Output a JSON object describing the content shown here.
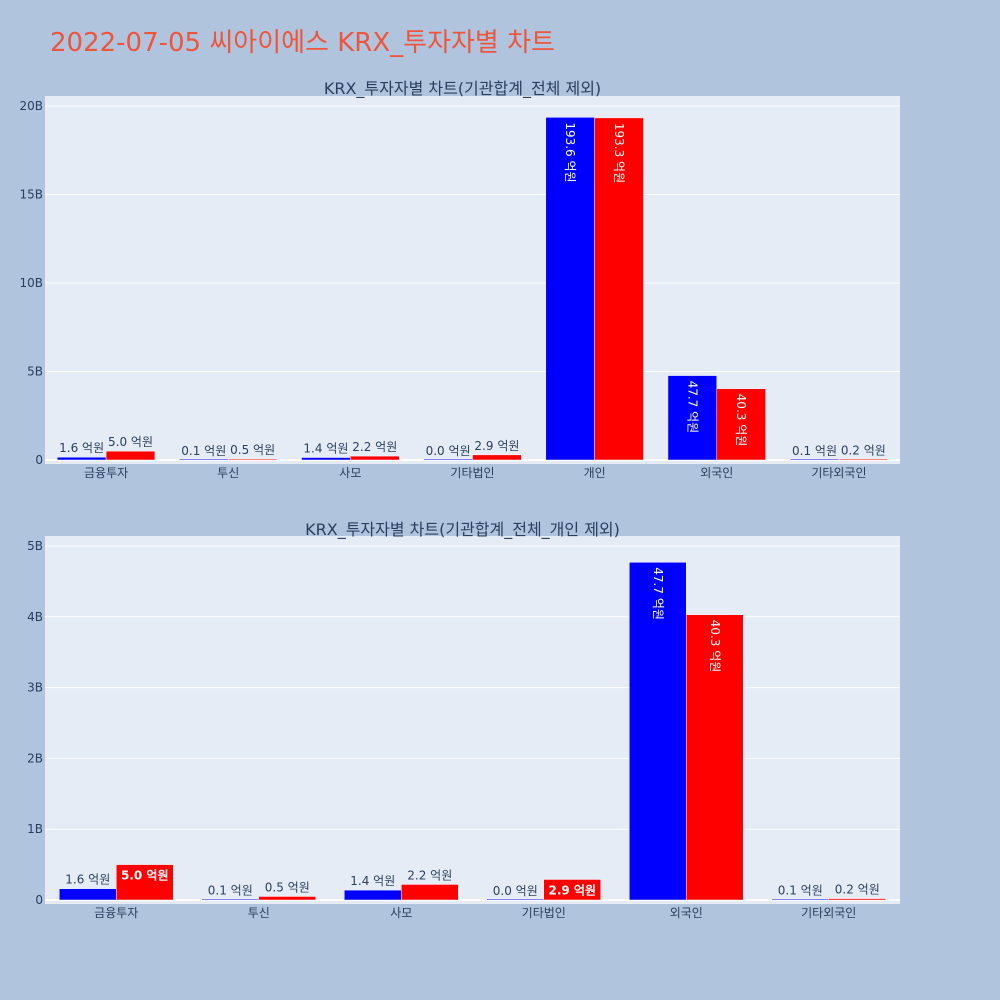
{
  "page_title": "2022-07-05 씨아이에스 KRX_투자자별 차트",
  "colors": {
    "page_bg": "#b0c4de",
    "plot_bg": "#e5ecf6",
    "buy": "#0000ff",
    "sell": "#ff0000",
    "title": "#ef553b",
    "text": "#2a3f5f"
  },
  "chart_data": [
    {
      "type": "bar",
      "title": "KRX_투자자별 차트(기관합계_전체 제외)",
      "categories": [
        "금융투자",
        "투신",
        "사모",
        "기타법인",
        "개인",
        "외국인",
        "기타외국인"
      ],
      "series": [
        {
          "values": [
            160000000,
            10000000,
            140000000,
            0,
            19360000000,
            4770000000,
            10000000
          ],
          "labels": [
            "1.6 억원",
            "0.1 억원",
            "1.4 억원",
            "0.0 억원",
            "193.6 억원",
            "47.7 억원",
            "0.1 억원"
          ]
        },
        {
          "values": [
            500000000,
            50000000,
            220000000,
            290000000,
            19330000000,
            4030000000,
            20000000
          ],
          "labels": [
            "5.0 억원",
            "0.5 억원",
            "2.2 억원",
            "2.9 억원",
            "193.3 억원",
            "40.3 억원",
            "0.2 억원"
          ]
        }
      ],
      "ylim": [
        0,
        20000000000
      ],
      "yticks": [
        0,
        5000000000,
        10000000000,
        15000000000,
        20000000000
      ],
      "ytick_labels": [
        "0",
        "5B",
        "10B",
        "15B",
        "20B"
      ],
      "grid": true
    },
    {
      "type": "bar",
      "title": "KRX_투자자별 차트(기관합계_전체_개인 제외)",
      "categories": [
        "금융투자",
        "투신",
        "사모",
        "기타법인",
        "외국인",
        "기타외국인"
      ],
      "series": [
        {
          "values": [
            160000000,
            10000000,
            140000000,
            0,
            4770000000,
            10000000
          ],
          "labels": [
            "1.6 억원",
            "0.1 억원",
            "1.4 억원",
            "0.0 억원",
            "47.7 억원",
            "0.1 억원"
          ]
        },
        {
          "values": [
            500000000,
            50000000,
            220000000,
            290000000,
            4030000000,
            20000000
          ],
          "labels": [
            "5.0 억원",
            "0.5 억원",
            "2.2 억원",
            "2.9 억원",
            "40.3 억원",
            "0.2 억원"
          ]
        }
      ],
      "ylim": [
        0,
        5000000000
      ],
      "yticks": [
        0,
        1000000000,
        2000000000,
        3000000000,
        4000000000,
        5000000000
      ],
      "ytick_labels": [
        "0",
        "1B",
        "2B",
        "3B",
        "4B",
        "5B"
      ],
      "grid": true
    }
  ]
}
